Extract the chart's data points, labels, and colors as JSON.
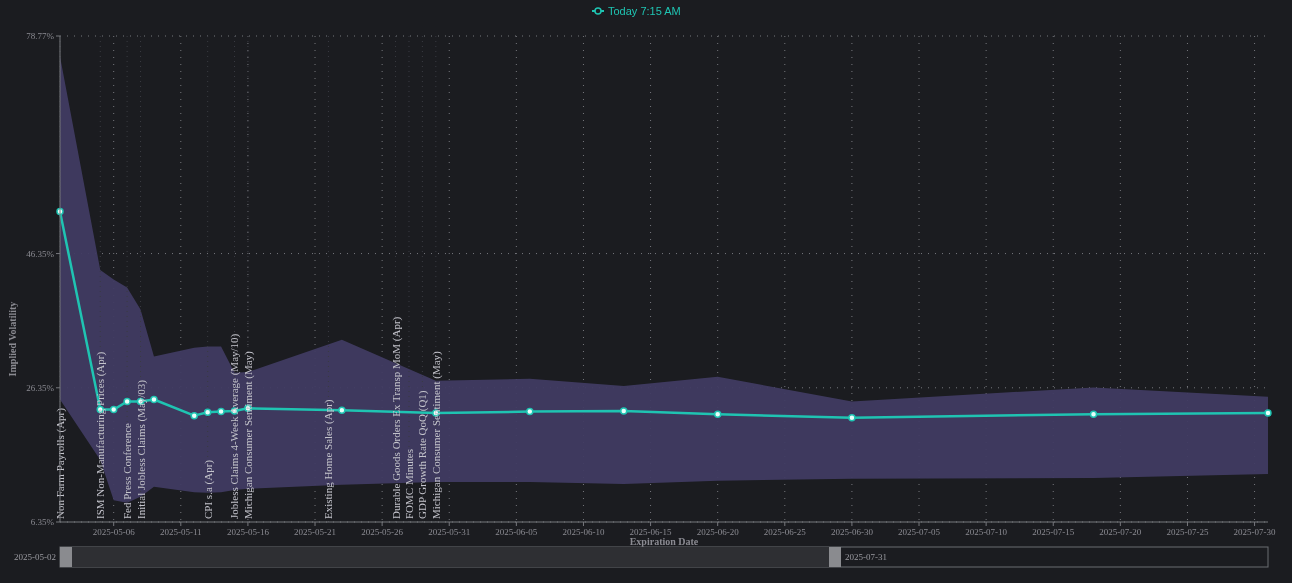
{
  "chart_data": {
    "type": "line",
    "xlabel": "Expiration Date",
    "ylabel": "Implied Volatility",
    "x": [
      "2025-05-02",
      "2025-05-05",
      "2025-05-06",
      "2025-05-07",
      "2025-05-08",
      "2025-05-09",
      "2025-05-12",
      "2025-05-13",
      "2025-05-14",
      "2025-05-15",
      "2025-05-16",
      "2025-05-23",
      "2025-05-30",
      "2025-06-06",
      "2025-06-13",
      "2025-06-20",
      "2025-06-30",
      "2025-07-18",
      "2025-07-31"
    ],
    "series": [
      {
        "name": "Today 7:15 AM",
        "color": "#1fc4b2",
        "values": [
          52.6,
          23.1,
          23.1,
          24.3,
          24.3,
          24.6,
          22.2,
          22.7,
          22.8,
          22.9,
          23.3,
          23.0,
          22.6,
          22.8,
          22.9,
          22.4,
          21.9,
          22.4,
          22.6
        ],
        "upper": [
          75.7,
          43.9,
          42.5,
          41.3,
          38.0,
          31.0,
          32.3,
          32.5,
          32.5,
          28.6,
          28.7,
          33.5,
          27.4,
          27.7,
          26.6,
          28.0,
          24.3,
          26.4,
          25.0
        ],
        "lower": [
          24.6,
          15.6,
          9.6,
          9.2,
          10.1,
          11.6,
          10.8,
          10.7,
          10.8,
          11.1,
          11.3,
          11.9,
          12.3,
          12.3,
          12.0,
          12.5,
          12.8,
          12.9,
          13.5
        ]
      }
    ],
    "xlim": [
      "2025-05-02",
      "2025-07-31"
    ],
    "xticks": [
      "2025-05-06",
      "2025-05-11",
      "2025-05-16",
      "2025-05-21",
      "2025-05-26",
      "2025-05-31",
      "2025-06-05",
      "2025-06-10",
      "2025-06-15",
      "2025-06-20",
      "2025-06-25",
      "2025-06-30",
      "2025-07-05",
      "2025-07-10",
      "2025-07-15",
      "2025-07-20",
      "2025-07-25",
      "2025-07-30"
    ],
    "ylim": [
      6.35,
      78.77
    ],
    "yticks": [
      {
        "value": 6.35,
        "label": "6.35%"
      },
      {
        "value": 26.35,
        "label": "26.35%"
      },
      {
        "value": 46.35,
        "label": "46.35%"
      },
      {
        "value": 78.77,
        "label": "78.77%"
      }
    ],
    "grid": true,
    "legend": "top",
    "marker": "circle",
    "line_style": "solid",
    "ref_lines": [
      {
        "axis": "x",
        "value": "2025-05-02",
        "label": "Non Farm Payrolls (Apr)",
        "color": "#3a3b42",
        "line_style": "dotted"
      },
      {
        "axis": "x",
        "value": "2025-05-05",
        "label": "ISM Non-Manufacturing Prices (Apr)",
        "color": "#3a3b42",
        "line_style": "dotted"
      },
      {
        "axis": "x",
        "value": "2025-05-07",
        "label": "Fed Press Conference",
        "color": "#3a3b42",
        "line_style": "dotted"
      },
      {
        "axis": "x",
        "value": "2025-05-08",
        "label": "Initial Jobless Claims (May/03)",
        "color": "#3a3b42",
        "line_style": "dotted"
      },
      {
        "axis": "x",
        "value": "2025-05-13",
        "label": "CPI s.a (Apr)",
        "color": "#3a3b42",
        "line_style": "dotted"
      },
      {
        "axis": "x",
        "value": "2025-05-15",
        "label": "Jobless Claims 4-Week Average (May/10)",
        "color": "#3a3b42",
        "line_style": "dotted"
      },
      {
        "axis": "x",
        "value": "2025-05-16",
        "label": "Michigan Consumer Sentiment (May)",
        "color": "#3a3b42",
        "line_style": "dotted"
      },
      {
        "axis": "x",
        "value": "2025-05-22",
        "label": "Existing Home Sales (Apr)",
        "color": "#3a3b42",
        "line_style": "dotted"
      },
      {
        "axis": "x",
        "value": "2025-05-27",
        "label": "Durable Goods Orders Ex Transp MoM (Apr)",
        "color": "#3a3b42",
        "line_style": "dotted"
      },
      {
        "axis": "x",
        "value": "2025-05-28",
        "label": "FOMC Minutes",
        "color": "#3a3b42",
        "line_style": "dotted"
      },
      {
        "axis": "x",
        "value": "2025-05-29",
        "label": "GDP Growth Rate QoQ (Q1)",
        "color": "#3a3b42",
        "line_style": "dotted"
      },
      {
        "axis": "x",
        "value": "2025-05-30",
        "label": "Michigan Consumer Sentiment (May)",
        "color": "#3a3b42",
        "line_style": "dotted"
      }
    ],
    "annotations": [
      "2025-05-02",
      "2025-07-31"
    ]
  }
}
